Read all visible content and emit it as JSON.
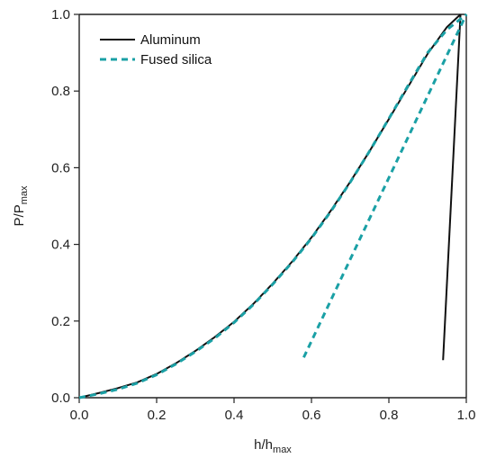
{
  "chart_data": {
    "type": "line",
    "xlabel": "h/h",
    "xlabel_sub": "max",
    "ylabel": "P/P",
    "ylabel_sub": "max",
    "xlim": [
      0,
      1
    ],
    "ylim": [
      0,
      1
    ],
    "xticks": [
      "0.0",
      "0.2",
      "0.4",
      "0.6",
      "0.8",
      "1.0"
    ],
    "yticks": [
      "0.0",
      "0.2",
      "0.4",
      "0.6",
      "0.8",
      "1.0"
    ],
    "grid": false,
    "legend_position": "top-left",
    "series": [
      {
        "name": "Aluminum",
        "color": "#111111",
        "style": "solid",
        "segments": [
          [
            [
              0,
              0
            ],
            [
              0.05,
              0.012
            ],
            [
              0.1,
              0.025
            ],
            [
              0.15,
              0.04
            ],
            [
              0.2,
              0.062
            ],
            [
              0.25,
              0.09
            ],
            [
              0.3,
              0.122
            ],
            [
              0.35,
              0.158
            ],
            [
              0.4,
              0.198
            ],
            [
              0.45,
              0.245
            ],
            [
              0.5,
              0.298
            ],
            [
              0.55,
              0.355
            ],
            [
              0.6,
              0.418
            ],
            [
              0.65,
              0.488
            ],
            [
              0.7,
              0.563
            ],
            [
              0.75,
              0.643
            ],
            [
              0.8,
              0.727
            ],
            [
              0.85,
              0.812
            ],
            [
              0.9,
              0.897
            ],
            [
              0.95,
              0.967
            ],
            [
              0.985,
              1.0
            ]
          ],
          [
            [
              0.94,
              0.098
            ],
            [
              0.985,
              1.0
            ]
          ]
        ]
      },
      {
        "name": "Fused silica",
        "color": "#1aa0a5",
        "style": "dashed",
        "segments": [
          [
            [
              0,
              0
            ],
            [
              0.05,
              0.01
            ],
            [
              0.1,
              0.022
            ],
            [
              0.15,
              0.038
            ],
            [
              0.2,
              0.06
            ],
            [
              0.25,
              0.088
            ],
            [
              0.3,
              0.12
            ],
            [
              0.35,
              0.155
            ],
            [
              0.4,
              0.196
            ],
            [
              0.45,
              0.243
            ],
            [
              0.5,
              0.296
            ],
            [
              0.55,
              0.353
            ],
            [
              0.6,
              0.416
            ],
            [
              0.65,
              0.486
            ],
            [
              0.7,
              0.562
            ],
            [
              0.75,
              0.643
            ],
            [
              0.8,
              0.728
            ],
            [
              0.85,
              0.815
            ],
            [
              0.9,
              0.9
            ],
            [
              0.95,
              0.96
            ],
            [
              1.0,
              1.0
            ]
          ],
          [
            [
              0.58,
              0.105
            ],
            [
              1.0,
              1.0
            ]
          ]
        ]
      }
    ]
  }
}
